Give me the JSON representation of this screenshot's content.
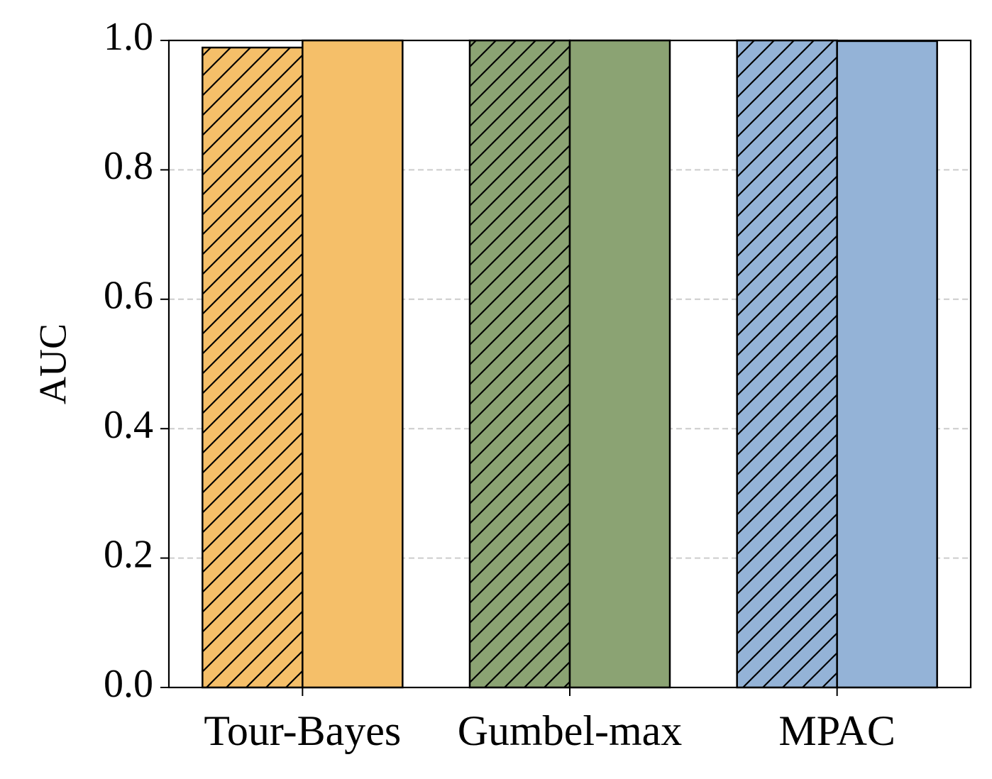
{
  "chart_data": {
    "type": "grouped_bar",
    "y_label": "AUC",
    "categories": [
      "Tour-Bayes",
      "Gumbel-max",
      "MPAC"
    ],
    "colors": [
      "#f5bf69",
      "#8ba373",
      "#94b3d7"
    ],
    "series": [
      {
        "values": [
          0.989,
          1.0,
          1.0
        ],
        "hatch": true
      },
      {
        "values": [
          1.0,
          1.0,
          0.999
        ],
        "hatch": false
      }
    ],
    "ylim": [
      0,
      1
    ],
    "yticks": [
      {
        "value": 0,
        "label": "0.0"
      },
      {
        "value": 0.2,
        "label": "0.2"
      },
      {
        "value": 0.4,
        "label": "0.4"
      },
      {
        "value": 0.6,
        "label": "0.6"
      },
      {
        "value": 0.8,
        "label": "0.8"
      },
      {
        "value": 1,
        "label": "1.0"
      }
    ],
    "grid": true
  }
}
